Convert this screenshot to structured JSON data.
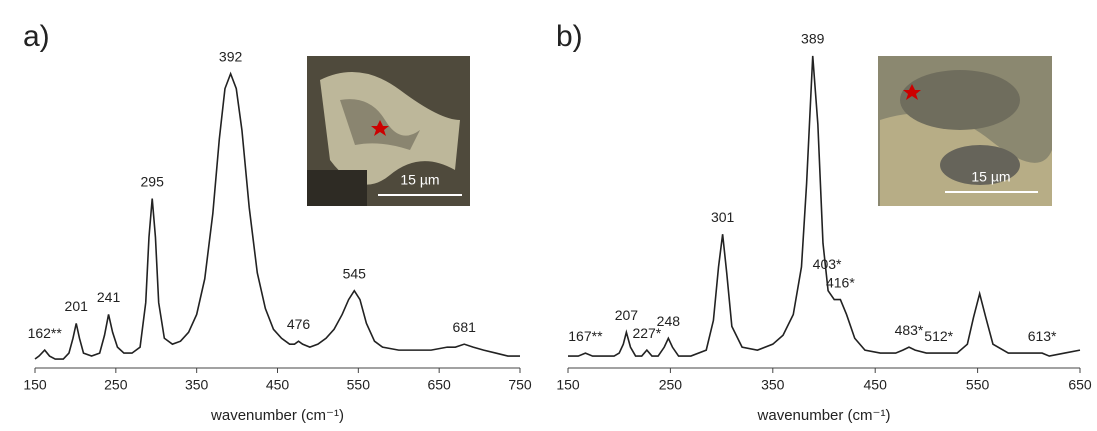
{
  "chart_data": [
    {
      "type": "line",
      "panel_label": "a)",
      "x_label": "wavenumber (cm⁻¹)",
      "inset_scale": "15 µm",
      "xlim": [
        150,
        750
      ],
      "xticks": [
        150,
        250,
        350,
        450,
        550,
        650,
        750
      ],
      "ylim": [
        0,
        105
      ],
      "x": [
        150,
        155,
        162,
        168,
        175,
        185,
        192,
        197,
        201,
        205,
        210,
        220,
        230,
        236,
        241,
        246,
        252,
        260,
        270,
        280,
        287,
        291,
        295,
        299,
        303,
        310,
        320,
        330,
        340,
        350,
        360,
        370,
        378,
        385,
        392,
        399,
        406,
        415,
        425,
        435,
        445,
        455,
        465,
        471,
        476,
        481,
        490,
        500,
        510,
        520,
        530,
        538,
        545,
        552,
        560,
        570,
        580,
        600,
        620,
        640,
        660,
        670,
        681,
        692,
        705,
        720,
        735,
        750
      ],
      "series": [
        {
          "color": "#222222",
          "values": [
            1,
            2,
            4,
            2,
            1,
            1,
            3,
            8,
            13,
            8,
            3,
            2,
            3,
            9,
            16,
            10,
            5,
            3,
            3,
            5,
            20,
            42,
            55,
            42,
            20,
            8,
            6,
            7,
            10,
            16,
            28,
            50,
            75,
            92,
            97,
            92,
            78,
            52,
            30,
            18,
            11,
            8,
            6,
            6,
            7,
            6,
            5,
            6,
            8,
            11,
            16,
            21,
            24,
            21,
            13,
            7,
            5,
            4,
            4,
            4,
            5,
            5,
            6,
            5,
            4,
            3,
            2,
            2
          ]
        }
      ],
      "annotations": [
        {
          "value": 162,
          "label": "162**"
        },
        201,
        241,
        295,
        392,
        476,
        545,
        681
      ]
    },
    {
      "type": "line",
      "panel_label": "b)",
      "x_label": "wavenumber (cm⁻¹)",
      "inset_scale": "15 µm",
      "xlim": [
        150,
        650
      ],
      "xticks": [
        150,
        250,
        350,
        450,
        550,
        650
      ],
      "ylim": [
        0,
        105
      ],
      "x": [
        150,
        160,
        167,
        174,
        185,
        195,
        200,
        204,
        207,
        211,
        216,
        222,
        227,
        232,
        238,
        244,
        248,
        252,
        258,
        270,
        285,
        292,
        297,
        301,
        305,
        310,
        320,
        335,
        350,
        360,
        370,
        378,
        383,
        389,
        394,
        399,
        404,
        410,
        416,
        422,
        430,
        440,
        455,
        470,
        477,
        483,
        489,
        500,
        530,
        540,
        546,
        552,
        558,
        565,
        580,
        600,
        606,
        613,
        620,
        635,
        650
      ],
      "series": [
        {
          "color": "#222222",
          "values": [
            2,
            2,
            3,
            2,
            2,
            2,
            3,
            6,
            10,
            5,
            2,
            2,
            4,
            2,
            2,
            5,
            8,
            5,
            2,
            2,
            4,
            14,
            32,
            43,
            30,
            12,
            5,
            4,
            6,
            9,
            16,
            32,
            60,
            103,
            80,
            40,
            24,
            21,
            21,
            16,
            8,
            4,
            3,
            3,
            4,
            5,
            4,
            3,
            3,
            6,
            15,
            23,
            15,
            6,
            3,
            3,
            3,
            3,
            2,
            3,
            4
          ]
        }
      ],
      "annotations": [
        {
          "value": 167,
          "label": "167**"
        },
        207,
        {
          "value": 227,
          "label": "227*"
        },
        248,
        301,
        389,
        {
          "value": 403,
          "label": "403*"
        },
        {
          "value": 416,
          "label": "416*"
        },
        {
          "value": 483,
          "label": "483*"
        },
        {
          "value": 512,
          "label": "512*"
        },
        {
          "value": 613,
          "label": "613*"
        }
      ]
    }
  ]
}
